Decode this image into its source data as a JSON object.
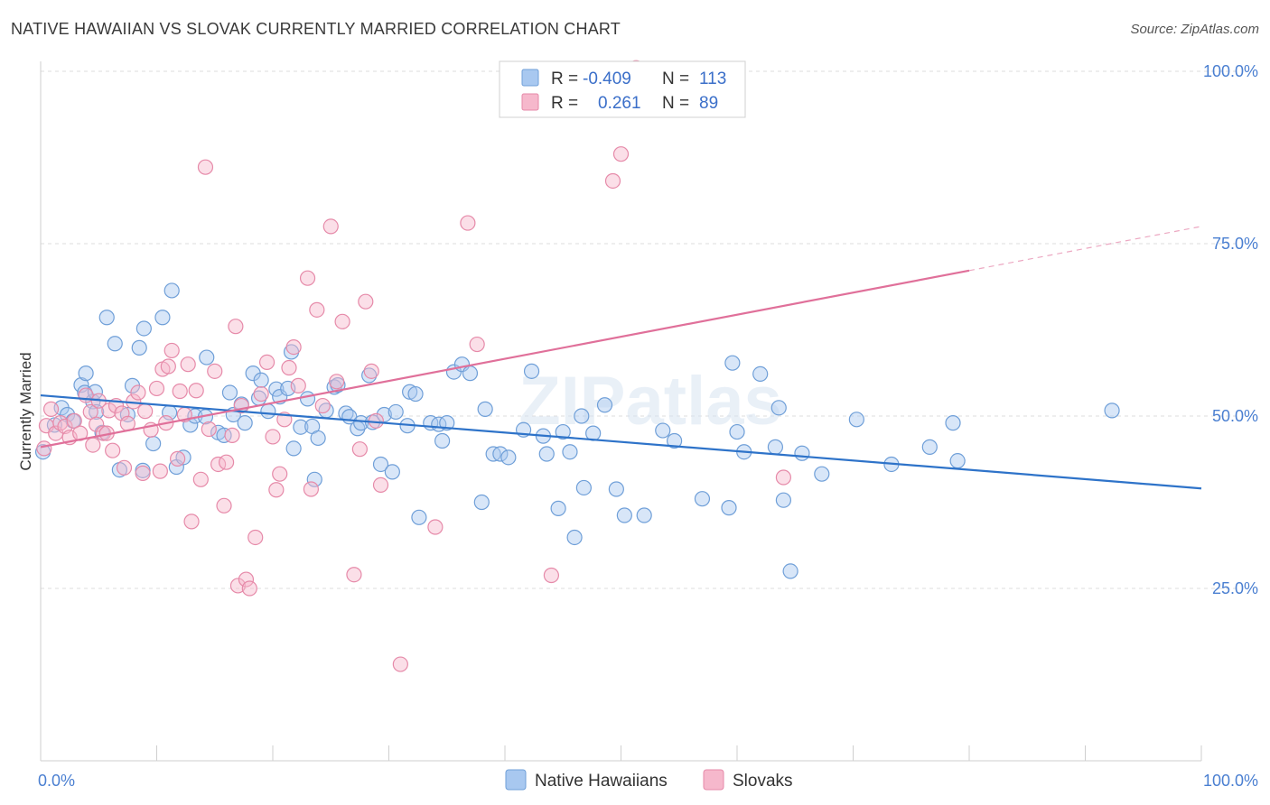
{
  "header": {
    "title": "NATIVE HAWAIIAN VS SLOVAK CURRENTLY MARRIED CORRELATION CHART",
    "source": "Source: ZipAtlas.com"
  },
  "watermark": "ZIPatlas",
  "colors": {
    "blue_fill": "#a8c8f0",
    "blue_stroke": "#6f9fd8",
    "blue_line": "#2e73c9",
    "pink_fill": "#f6b8cc",
    "pink_stroke": "#e68aa9",
    "pink_line": "#e0709a",
    "tick_text": "#4a7fd1",
    "grid": "#dcdcdc"
  },
  "legend": {
    "rows": [
      {
        "r_label": "R = ",
        "r_value": "-0.409",
        "n_label": "N = ",
        "n_value": "113"
      },
      {
        "r_label": "R = ",
        "r_value": "0.261",
        "n_label": "N = ",
        "n_value": "89"
      }
    ]
  },
  "chart_data": {
    "type": "scatter",
    "title": "NATIVE HAWAIIAN VS SLOVAK CURRENTLY MARRIED CORRELATION CHART",
    "xlabel": "",
    "ylabel": "Currently Married",
    "xlim": [
      0,
      100
    ],
    "ylim": [
      0,
      105
    ],
    "x_tick_labels": [
      "0.0%",
      "100.0%"
    ],
    "y_ticks": [
      25,
      50,
      75,
      100
    ],
    "y_tick_labels": [
      "25.0%",
      "50.0%",
      "75.0%",
      "100.0%"
    ],
    "grid": true,
    "legend_position": "top-center",
    "series": [
      {
        "name": "Native Hawaiians",
        "color": "#a8c8f0",
        "trend": {
          "x": [
            0,
            100
          ],
          "y": [
            53,
            39.5
          ],
          "dashed_from": null
        },
        "points": [
          [
            0.2,
            44.8
          ],
          [
            1.2,
            48.7
          ],
          [
            1.8,
            51.2
          ],
          [
            2.3,
            50.2
          ],
          [
            2.8,
            49.3
          ],
          [
            3.5,
            54.5
          ],
          [
            3.8,
            53.4
          ],
          [
            3.9,
            56.2
          ],
          [
            4.5,
            52.1
          ],
          [
            4.7,
            53.5
          ],
          [
            4.8,
            50.6
          ],
          [
            5.3,
            47.6
          ],
          [
            5.7,
            64.3
          ],
          [
            6.4,
            60.5
          ],
          [
            6.8,
            42.2
          ],
          [
            7.5,
            50.2
          ],
          [
            7.9,
            54.4
          ],
          [
            8.5,
            59.9
          ],
          [
            8.8,
            42.1
          ],
          [
            8.9,
            62.7
          ],
          [
            9.7,
            46.0
          ],
          [
            10.5,
            64.3
          ],
          [
            11.1,
            50.5
          ],
          [
            11.3,
            68.2
          ],
          [
            11.7,
            42.6
          ],
          [
            12.3,
            44.0
          ],
          [
            12.9,
            48.7
          ],
          [
            13.3,
            50.0
          ],
          [
            14.2,
            49.9
          ],
          [
            14.3,
            58.5
          ],
          [
            15.3,
            47.6
          ],
          [
            15.8,
            47.2
          ],
          [
            16.3,
            53.4
          ],
          [
            16.6,
            50.2
          ],
          [
            17.3,
            51.7
          ],
          [
            17.6,
            49.0
          ],
          [
            18.3,
            56.2
          ],
          [
            18.8,
            52.6
          ],
          [
            19.0,
            55.2
          ],
          [
            19.6,
            50.7
          ],
          [
            20.3,
            53.9
          ],
          [
            20.6,
            52.8
          ],
          [
            21.3,
            54.0
          ],
          [
            21.6,
            59.3
          ],
          [
            21.8,
            45.3
          ],
          [
            22.4,
            48.4
          ],
          [
            23.0,
            52.5
          ],
          [
            23.4,
            48.5
          ],
          [
            23.6,
            40.8
          ],
          [
            23.9,
            46.8
          ],
          [
            24.6,
            50.8
          ],
          [
            25.3,
            54.2
          ],
          [
            25.6,
            54.5
          ],
          [
            26.3,
            50.4
          ],
          [
            26.6,
            49.9
          ],
          [
            27.3,
            48.2
          ],
          [
            27.6,
            49.0
          ],
          [
            28.3,
            55.9
          ],
          [
            28.6,
            49.1
          ],
          [
            29.3,
            43.0
          ],
          [
            29.6,
            50.2
          ],
          [
            30.3,
            41.9
          ],
          [
            30.6,
            50.6
          ],
          [
            31.6,
            48.6
          ],
          [
            31.8,
            53.5
          ],
          [
            32.3,
            53.2
          ],
          [
            32.6,
            35.3
          ],
          [
            33.6,
            49.0
          ],
          [
            34.3,
            48.8
          ],
          [
            34.6,
            46.4
          ],
          [
            35.0,
            49.0
          ],
          [
            35.6,
            56.4
          ],
          [
            36.3,
            57.5
          ],
          [
            37.0,
            56.2
          ],
          [
            38.0,
            37.5
          ],
          [
            38.3,
            51.0
          ],
          [
            39.0,
            44.5
          ],
          [
            39.6,
            44.5
          ],
          [
            40.3,
            44.0
          ],
          [
            41.6,
            48.0
          ],
          [
            42.3,
            56.5
          ],
          [
            43.3,
            47.1
          ],
          [
            43.6,
            44.5
          ],
          [
            44.6,
            36.6
          ],
          [
            45.0,
            47.7
          ],
          [
            45.6,
            44.8
          ],
          [
            46.0,
            32.4
          ],
          [
            46.6,
            50.0
          ],
          [
            46.8,
            39.6
          ],
          [
            47.6,
            47.5
          ],
          [
            48.6,
            51.6
          ],
          [
            49.6,
            39.4
          ],
          [
            50.3,
            35.6
          ],
          [
            52.0,
            35.6
          ],
          [
            53.6,
            47.9
          ],
          [
            54.6,
            46.4
          ],
          [
            57.0,
            38.0
          ],
          [
            59.3,
            36.7
          ],
          [
            59.6,
            57.7
          ],
          [
            60.0,
            47.7
          ],
          [
            60.6,
            44.8
          ],
          [
            62.0,
            56.1
          ],
          [
            63.3,
            45.5
          ],
          [
            63.6,
            51.2
          ],
          [
            64.0,
            37.8
          ],
          [
            64.6,
            27.5
          ],
          [
            65.6,
            44.6
          ],
          [
            67.3,
            41.6
          ],
          [
            70.3,
            49.5
          ],
          [
            73.3,
            43.0
          ],
          [
            76.6,
            45.5
          ],
          [
            78.6,
            49.0
          ],
          [
            79.0,
            43.5
          ],
          [
            92.3,
            50.8
          ]
        ]
      },
      {
        "name": "Slovaks",
        "color": "#f6b8cc",
        "trend": {
          "x": [
            0,
            100
          ],
          "y": [
            45.5,
            77.5
          ],
          "dashed_from": 80
        },
        "points": [
          [
            0.3,
            45.3
          ],
          [
            0.5,
            48.6
          ],
          [
            0.9,
            51.0
          ],
          [
            1.3,
            47.5
          ],
          [
            1.7,
            49.0
          ],
          [
            2.1,
            48.5
          ],
          [
            2.5,
            46.9
          ],
          [
            2.9,
            49.3
          ],
          [
            3.4,
            47.5
          ],
          [
            3.9,
            53.0
          ],
          [
            4.3,
            50.6
          ],
          [
            4.5,
            45.8
          ],
          [
            4.8,
            48.8
          ],
          [
            5.0,
            52.2
          ],
          [
            5.4,
            47.5
          ],
          [
            5.7,
            47.5
          ],
          [
            5.9,
            50.8
          ],
          [
            6.2,
            45.0
          ],
          [
            6.5,
            51.5
          ],
          [
            7.0,
            50.4
          ],
          [
            7.2,
            42.5
          ],
          [
            7.5,
            48.9
          ],
          [
            8.0,
            52.1
          ],
          [
            8.4,
            53.4
          ],
          [
            8.8,
            41.7
          ],
          [
            9.0,
            50.7
          ],
          [
            9.5,
            48.0
          ],
          [
            10.0,
            54.0
          ],
          [
            10.3,
            42.0
          ],
          [
            10.5,
            56.8
          ],
          [
            10.8,
            49.0
          ],
          [
            11.0,
            57.2
          ],
          [
            11.3,
            59.5
          ],
          [
            11.8,
            43.8
          ],
          [
            12.0,
            53.6
          ],
          [
            12.4,
            50.2
          ],
          [
            12.7,
            57.5
          ],
          [
            13.0,
            34.7
          ],
          [
            13.4,
            53.7
          ],
          [
            13.8,
            40.8
          ],
          [
            14.2,
            86.1
          ],
          [
            14.5,
            48.1
          ],
          [
            15.0,
            56.5
          ],
          [
            15.3,
            43.0
          ],
          [
            15.8,
            37.0
          ],
          [
            16.0,
            43.3
          ],
          [
            16.5,
            47.2
          ],
          [
            16.8,
            63.0
          ],
          [
            17.0,
            25.4
          ],
          [
            17.3,
            51.5
          ],
          [
            17.7,
            26.3
          ],
          [
            18.0,
            25.0
          ],
          [
            18.5,
            32.4
          ],
          [
            19.0,
            53.2
          ],
          [
            19.5,
            57.8
          ],
          [
            20.0,
            47.0
          ],
          [
            20.3,
            39.3
          ],
          [
            20.6,
            41.6
          ],
          [
            21.0,
            49.5
          ],
          [
            21.4,
            57.0
          ],
          [
            21.8,
            60.0
          ],
          [
            22.2,
            54.4
          ],
          [
            23.0,
            70.0
          ],
          [
            23.3,
            39.4
          ],
          [
            23.8,
            65.4
          ],
          [
            24.3,
            51.5
          ],
          [
            25.0,
            77.5
          ],
          [
            25.5,
            55.0
          ],
          [
            26.0,
            63.7
          ],
          [
            27.0,
            27.0
          ],
          [
            27.5,
            45.2
          ],
          [
            28.0,
            66.6
          ],
          [
            28.5,
            56.5
          ],
          [
            28.9,
            49.3
          ],
          [
            29.3,
            40.0
          ],
          [
            31.0,
            14.0
          ],
          [
            34.0,
            33.9
          ],
          [
            36.8,
            78.0
          ],
          [
            37.6,
            60.4
          ],
          [
            44.0,
            26.9
          ],
          [
            49.3,
            84.1
          ],
          [
            50.0,
            88.0
          ],
          [
            51.3,
            100.5
          ],
          [
            64.0,
            41.1
          ]
        ]
      }
    ]
  }
}
